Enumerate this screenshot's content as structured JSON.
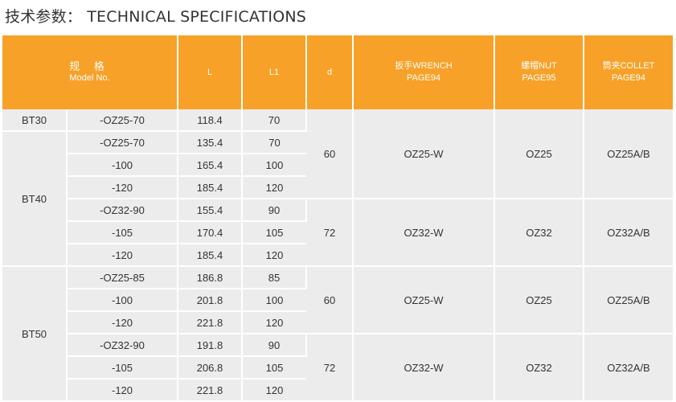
{
  "page": {
    "title": "技术参数： TECHNICAL SPECIFICATIONS"
  },
  "table": {
    "headers": {
      "model_cn": "规 格",
      "model_en": "Model No.",
      "L": "L",
      "L1": "L1",
      "d": "d",
      "wrench": "扳手WRENCH",
      "wrench_page": "PAGE94",
      "nut": "螺帽NUT",
      "nut_page": "PAGE95",
      "collet": "筒夹COLLET",
      "collet_page": "PAGE94"
    },
    "groups": [
      {
        "label": "BT30"
      },
      {
        "label": "BT40"
      },
      {
        "label": "BT50"
      }
    ],
    "rows": [
      {
        "suffix": "-OZ25-70",
        "L": "118.4",
        "L1": "70"
      },
      {
        "suffix": "-OZ25-70",
        "L": "135.4",
        "L1": "70"
      },
      {
        "suffix": "-100",
        "L": "165.4",
        "L1": "100"
      },
      {
        "suffix": "-120",
        "L": "185.4",
        "L1": "120"
      },
      {
        "suffix": "-OZ32-90",
        "L": "155.4",
        "L1": "90"
      },
      {
        "suffix": "-105",
        "L": "170.4",
        "L1": "105"
      },
      {
        "suffix": "-120",
        "L": "185.4",
        "L1": "120"
      },
      {
        "suffix": "-OZ25-85",
        "L": "186.8",
        "L1": "85"
      },
      {
        "suffix": "-100",
        "L": "201.8",
        "L1": "100"
      },
      {
        "suffix": "-120",
        "L": "221.8",
        "L1": "120"
      },
      {
        "suffix": "-OZ32-90",
        "L": "191.8",
        "L1": "90"
      },
      {
        "suffix": "-105",
        "L": "206.8",
        "L1": "105"
      },
      {
        "suffix": "-120",
        "L": "221.8",
        "L1": "120"
      }
    ],
    "accessory_blocks": [
      {
        "d": "60",
        "wrench": "OZ25-W",
        "nut": "OZ25",
        "collet": "OZ25A/B"
      },
      {
        "d": "72",
        "wrench": "OZ32-W",
        "nut": "OZ32",
        "collet": "OZ32A/B"
      },
      {
        "d": "60",
        "wrench": "OZ25-W",
        "nut": "OZ25",
        "collet": "OZ25A/B"
      },
      {
        "d": "72",
        "wrench": "OZ32-W",
        "nut": "OZ32",
        "collet": "OZ32A/B"
      }
    ]
  },
  "colors": {
    "header_bg": "#f7a128",
    "cell_bg": "#ececec",
    "text": "#333333"
  }
}
